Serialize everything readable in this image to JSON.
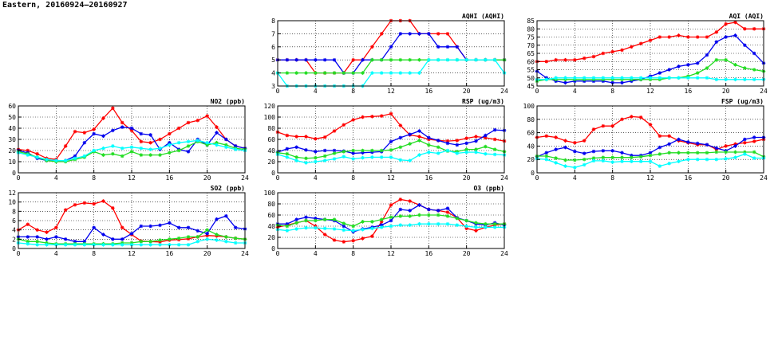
{
  "page": {
    "title": "Eastern, 20160924—20160927"
  },
  "colors": {
    "red": "#ff0000",
    "blue": "#0000ee",
    "green": "#22dd22",
    "cyan": "#00ffff"
  },
  "chart_data": [
    {
      "id": "aqhi",
      "type": "line",
      "title": "AQHI (AQHI)",
      "x": [
        0,
        1,
        2,
        3,
        4,
        5,
        6,
        7,
        8,
        9,
        10,
        11,
        12,
        13,
        14,
        15,
        16,
        17,
        18,
        19,
        20,
        21,
        22,
        23,
        24
      ],
      "xlim": [
        0,
        24
      ],
      "xticks": [
        0,
        4,
        8,
        12,
        16,
        20,
        24
      ],
      "ylim": [
        3,
        8
      ],
      "yticks": [
        3,
        4,
        5,
        6,
        7,
        8
      ],
      "grid": true,
      "series": [
        {
          "color": "red",
          "values": [
            5,
            5,
            5,
            5,
            4,
            4,
            4,
            4,
            5,
            5,
            6,
            7,
            8,
            8,
            8,
            7,
            7,
            7,
            7,
            6,
            5,
            5,
            5,
            5,
            5
          ]
        },
        {
          "color": "blue",
          "values": [
            5,
            5,
            5,
            5,
            5,
            5,
            5,
            4,
            4,
            5,
            5,
            5,
            6,
            7,
            7,
            7,
            7,
            6,
            6,
            6,
            5,
            5,
            5,
            5,
            5
          ]
        },
        {
          "color": "green",
          "values": [
            4,
            4,
            4,
            4,
            4,
            4,
            4,
            4,
            4,
            4,
            5,
            5,
            5,
            5,
            5,
            5,
            5,
            5,
            5,
            5,
            5,
            5,
            5,
            5,
            5
          ]
        },
        {
          "color": "cyan",
          "values": [
            4,
            3,
            3,
            3,
            3,
            3,
            3,
            3,
            3,
            3,
            4,
            4,
            4,
            4,
            4,
            4,
            5,
            5,
            5,
            5,
            5,
            5,
            5,
            5,
            4
          ]
        }
      ]
    },
    {
      "id": "aqi",
      "type": "line",
      "title": "AQI (AQI)",
      "x": [
        0,
        1,
        2,
        3,
        4,
        5,
        6,
        7,
        8,
        9,
        10,
        11,
        12,
        13,
        14,
        15,
        16,
        17,
        18,
        19,
        20,
        21,
        22,
        23,
        24
      ],
      "xlim": [
        0,
        24
      ],
      "xticks": [
        0,
        4,
        8,
        12,
        16,
        20,
        24
      ],
      "ylim": [
        45,
        85
      ],
      "yticks": [
        45,
        50,
        55,
        60,
        65,
        70,
        75,
        80,
        85
      ],
      "grid": true,
      "series": [
        {
          "color": "red",
          "values": [
            60,
            60,
            61,
            61,
            61,
            62,
            63,
            65,
            66,
            67,
            69,
            71,
            73,
            75,
            75,
            76,
            75,
            75,
            75,
            78,
            83,
            84,
            80,
            80,
            80
          ]
        },
        {
          "color": "blue",
          "values": [
            54,
            50,
            48,
            47,
            48,
            48,
            48,
            48,
            47,
            47,
            48,
            49,
            51,
            53,
            55,
            57,
            58,
            59,
            64,
            72,
            75,
            76,
            70,
            65,
            59
          ]
        },
        {
          "color": "green",
          "values": [
            48,
            49,
            49,
            49,
            49,
            49,
            49,
            49,
            49,
            49,
            49,
            49,
            49,
            49,
            50,
            50,
            51,
            53,
            56,
            61,
            61,
            58,
            56,
            55,
            54
          ]
        },
        {
          "color": "cyan",
          "values": [
            49,
            49,
            50,
            50,
            50,
            50,
            50,
            50,
            50,
            50,
            50,
            50,
            50,
            50,
            50,
            50,
            50,
            50,
            50,
            49,
            49,
            49,
            49,
            49,
            49
          ]
        }
      ]
    },
    {
      "id": "no2",
      "type": "line",
      "title": "NO2 (ppb)",
      "x": [
        0,
        1,
        2,
        3,
        4,
        5,
        6,
        7,
        8,
        9,
        10,
        11,
        12,
        13,
        14,
        15,
        16,
        17,
        18,
        19,
        20,
        21,
        22,
        23,
        24
      ],
      "xlim": [
        0,
        24
      ],
      "xticks": [
        0,
        4,
        8,
        12,
        16,
        20,
        24
      ],
      "ylim": [
        0,
        60
      ],
      "yticks": [
        0,
        10,
        20,
        30,
        40,
        50,
        60
      ],
      "grid": true,
      "series": [
        {
          "color": "red",
          "values": [
            21,
            20,
            17,
            13,
            12,
            24,
            37,
            36,
            39,
            49,
            58,
            45,
            38,
            28,
            27,
            30,
            35,
            40,
            45,
            47,
            51,
            41,
            30,
            24,
            22
          ]
        },
        {
          "color": "blue",
          "values": [
            20,
            18,
            13,
            11,
            11,
            11,
            15,
            27,
            35,
            33,
            38,
            41,
            40,
            35,
            34,
            21,
            27,
            21,
            19,
            30,
            25,
            36,
            30,
            24,
            22
          ]
        },
        {
          "color": "green",
          "values": [
            19,
            17,
            14,
            11,
            10,
            10,
            12,
            14,
            19,
            16,
            17,
            15,
            19,
            16,
            16,
            16,
            18,
            20,
            24,
            28,
            25,
            27,
            25,
            22,
            21
          ]
        },
        {
          "color": "cyan",
          "values": [
            18,
            16,
            14,
            12,
            11,
            11,
            13,
            15,
            20,
            22,
            24,
            22,
            23,
            22,
            21,
            22,
            25,
            27,
            28,
            29,
            27,
            25,
            23,
            21,
            20
          ]
        }
      ]
    },
    {
      "id": "rsp",
      "type": "line",
      "title": "RSP (ug/m3)",
      "x": [
        0,
        1,
        2,
        3,
        4,
        5,
        6,
        7,
        8,
        9,
        10,
        11,
        12,
        13,
        14,
        15,
        16,
        17,
        18,
        19,
        20,
        21,
        22,
        23,
        24
      ],
      "xlim": [
        0,
        24
      ],
      "xticks": [
        0,
        4,
        8,
        12,
        16,
        20,
        24
      ],
      "ylim": [
        0,
        120
      ],
      "yticks": [
        0,
        20,
        40,
        60,
        80,
        100,
        120
      ],
      "grid": true,
      "series": [
        {
          "color": "red",
          "values": [
            73,
            67,
            65,
            65,
            61,
            64,
            75,
            86,
            95,
            100,
            101,
            102,
            106,
            85,
            68,
            65,
            60,
            58,
            57,
            58,
            62,
            65,
            63,
            60,
            57
          ]
        },
        {
          "color": "blue",
          "values": [
            37,
            43,
            46,
            41,
            38,
            40,
            40,
            39,
            35,
            36,
            37,
            38,
            56,
            63,
            69,
            75,
            63,
            58,
            53,
            50,
            53,
            57,
            67,
            77,
            76
          ]
        },
        {
          "color": "green",
          "values": [
            36,
            34,
            28,
            26,
            27,
            30,
            35,
            38,
            40,
            40,
            40,
            40,
            41,
            46,
            52,
            58,
            50,
            46,
            39,
            38,
            42,
            42,
            47,
            42,
            38
          ]
        },
        {
          "color": "cyan",
          "values": [
            33,
            28,
            22,
            18,
            20,
            22,
            25,
            29,
            25,
            27,
            28,
            28,
            28,
            23,
            22,
            32,
            37,
            35,
            40,
            35,
            37,
            37,
            34,
            33,
            32
          ]
        }
      ]
    },
    {
      "id": "fsp",
      "type": "line",
      "title": "FSP (ug/m3)",
      "x": [
        0,
        1,
        2,
        3,
        4,
        5,
        6,
        7,
        8,
        9,
        10,
        11,
        12,
        13,
        14,
        15,
        16,
        17,
        18,
        19,
        20,
        21,
        22,
        23,
        24
      ],
      "xlim": [
        0,
        24
      ],
      "xticks": [
        0,
        4,
        8,
        12,
        16,
        20,
        24
      ],
      "ylim": [
        0,
        100
      ],
      "yticks": [
        0,
        20,
        40,
        60,
        80,
        100
      ],
      "grid": true,
      "series": [
        {
          "color": "red",
          "values": [
            53,
            55,
            53,
            48,
            45,
            48,
            65,
            70,
            70,
            80,
            84,
            83,
            72,
            55,
            55,
            48,
            45,
            42,
            42,
            35,
            40,
            43,
            45,
            47,
            50
          ]
        },
        {
          "color": "blue",
          "values": [
            24,
            30,
            35,
            38,
            32,
            29,
            32,
            33,
            33,
            30,
            26,
            26,
            30,
            38,
            43,
            50,
            46,
            44,
            42,
            37,
            33,
            40,
            50,
            53,
            53
          ]
        },
        {
          "color": "green",
          "values": [
            25,
            25,
            22,
            19,
            19,
            20,
            22,
            23,
            23,
            23,
            23,
            24,
            26,
            28,
            30,
            30,
            30,
            30,
            30,
            31,
            31,
            31,
            31,
            31,
            24
          ]
        },
        {
          "color": "cyan",
          "values": [
            21,
            20,
            15,
            10,
            8,
            12,
            18,
            18,
            16,
            17,
            17,
            17,
            17,
            10,
            14,
            17,
            20,
            20,
            20,
            20,
            21,
            23,
            28,
            22,
            22
          ]
        }
      ]
    },
    {
      "id": "so2",
      "type": "line",
      "title": "SO2 (ppb)",
      "x": [
        0,
        1,
        2,
        3,
        4,
        5,
        6,
        7,
        8,
        9,
        10,
        11,
        12,
        13,
        14,
        15,
        16,
        17,
        18,
        19,
        20,
        21,
        22,
        23,
        24
      ],
      "xlim": [
        0,
        24
      ],
      "xticks": [
        0,
        4,
        8,
        12,
        16,
        20,
        24
      ],
      "ylim": [
        0,
        12
      ],
      "yticks": [
        0,
        2,
        4,
        6,
        8,
        10,
        12
      ],
      "grid": true,
      "series": [
        {
          "color": "red",
          "values": [
            4,
            5.2,
            4,
            3.5,
            4.5,
            8.3,
            9.4,
            9.8,
            9.6,
            10.2,
            8.7,
            4.5,
            3,
            1.6,
            1.5,
            1.4,
            1.8,
            1.9,
            2.1,
            2.5,
            2.8,
            2.7,
            2.5,
            2.2,
            2
          ]
        },
        {
          "color": "blue",
          "values": [
            2.5,
            2.5,
            2.5,
            2,
            2.5,
            2,
            1.5,
            1.5,
            4.5,
            3,
            2,
            2,
            3.2,
            4.8,
            4.8,
            5,
            5.5,
            4.5,
            4.5,
            3.8,
            3.2,
            6.3,
            7,
            4.5,
            4.2
          ]
        },
        {
          "color": "green",
          "values": [
            2,
            1.5,
            1.5,
            1.2,
            1,
            1,
            1,
            1,
            1,
            1,
            1,
            1.2,
            1.2,
            1.5,
            1.5,
            1.8,
            2,
            2.2,
            2.5,
            2.5,
            4,
            3,
            2.5,
            2.2,
            2
          ]
        },
        {
          "color": "cyan",
          "values": [
            1.2,
            1,
            0.8,
            0.8,
            0.8,
            0.8,
            0.8,
            0.8,
            0.8,
            0.8,
            0.8,
            0.8,
            0.8,
            0.8,
            0.8,
            0.8,
            0.8,
            0.8,
            0.8,
            1.5,
            2,
            1.8,
            1.5,
            1.2,
            1.2
          ]
        }
      ]
    },
    {
      "id": "o3",
      "type": "line",
      "title": "O3 (ppb)",
      "x": [
        0,
        1,
        2,
        3,
        4,
        5,
        6,
        7,
        8,
        9,
        10,
        11,
        12,
        13,
        14,
        15,
        16,
        17,
        18,
        19,
        20,
        21,
        22,
        23,
        24
      ],
      "xlim": [
        0,
        24
      ],
      "xticks": [
        0,
        4,
        8,
        12,
        16,
        20,
        24
      ],
      "ylim": [
        0,
        100
      ],
      "yticks": [
        0,
        20,
        40,
        60,
        80,
        100
      ],
      "grid": true,
      "series": [
        {
          "color": "red",
          "values": [
            38,
            42,
            46,
            50,
            40,
            25,
            15,
            12,
            14,
            18,
            22,
            48,
            78,
            88,
            85,
            78,
            70,
            68,
            65,
            55,
            36,
            32,
            38,
            42,
            44
          ]
        },
        {
          "color": "blue",
          "values": [
            44,
            44,
            52,
            56,
            54,
            52,
            50,
            40,
            30,
            35,
            38,
            42,
            50,
            70,
            68,
            78,
            70,
            68,
            72,
            55,
            50,
            44,
            42,
            46,
            42
          ]
        },
        {
          "color": "green",
          "values": [
            42,
            40,
            46,
            50,
            50,
            52,
            52,
            45,
            40,
            48,
            48,
            52,
            56,
            58,
            58,
            60,
            60,
            60,
            58,
            54,
            50,
            46,
            44,
            44,
            44
          ]
        },
        {
          "color": "cyan",
          "values": [
            34,
            32,
            35,
            37,
            37,
            36,
            35,
            33,
            32,
            34,
            36,
            38,
            40,
            42,
            42,
            44,
            44,
            44,
            44,
            42,
            40,
            38,
            38,
            38,
            38
          ]
        }
      ]
    }
  ]
}
